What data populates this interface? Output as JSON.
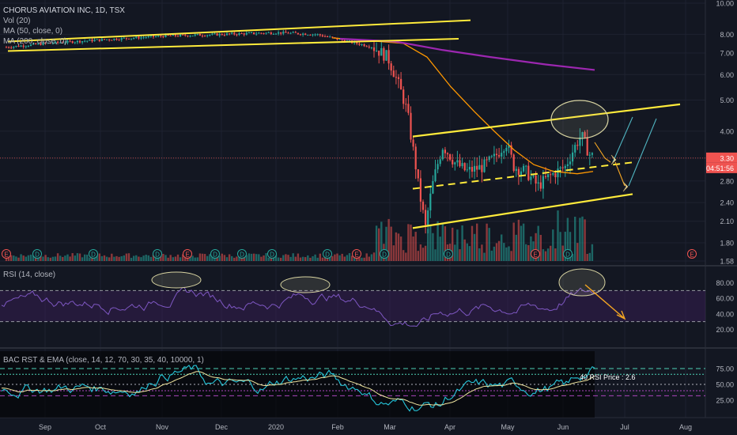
{
  "header": {
    "symbol_line": "CHORUS AVIATION INC, 1D, TSX",
    "vol_label": "Vol (20)",
    "ma1_label": "MA (50, close, 0)",
    "ma2_label": "MA (200, close, 0)",
    "rsi_label": "RSI (14, close)",
    "bac_label": "BAC RST & EMA (close, 14, 12, 70, 30, 35, 40, 10000, 1)"
  },
  "price_axis": {
    "ticks": [
      "10.00",
      "8.00",
      "7.00",
      "6.00",
      "5.00",
      "4.00",
      "3.30",
      "2.80",
      "2.40",
      "2.10",
      "1.80",
      "1.58"
    ],
    "last_price": "3.30",
    "countdown": "04:51:56"
  },
  "rsi_axis": {
    "ticks": [
      "80.00",
      "60.00",
      "40.00",
      "20.00"
    ]
  },
  "bac_axis": {
    "ticks": [
      "75.00",
      "50.00",
      "25.00"
    ]
  },
  "bac_annotation": "40 RSI Price : 2.6",
  "time_axis": {
    "labels": [
      "Sep",
      "Oct",
      "Nov",
      "Dec",
      "2020",
      "Feb",
      "Mar",
      "Apr",
      "May",
      "Jun",
      "Jul",
      "Aug"
    ]
  },
  "event_markers": [
    "E",
    "D",
    "E",
    "D",
    "D",
    "D",
    "E",
    "D",
    "D",
    "E",
    "D",
    "E",
    "D",
    "E",
    "D",
    "E",
    "D",
    "E"
  ],
  "colors": {
    "bg": "#131722",
    "up": "#26a69a",
    "down": "#ef5350",
    "trendline": "#ffeb3b",
    "ma_fast": "#ff9800",
    "ma_slow": "#9c27b0",
    "rsi": "#7e57c2",
    "teal": "#26c6da"
  },
  "chart_data": {
    "type": "candlestick",
    "title": "CHORUS AVIATION INC, 1D, TSX",
    "y_scale": "log",
    "ylim": [
      1.58,
      10.0
    ],
    "x_range": [
      "Aug",
      "Aug"
    ],
    "series": [
      {
        "name": "Vol (20)",
        "type": "bar"
      },
      {
        "name": "MA (50, close, 0)",
        "type": "line"
      },
      {
        "name": "MA (200, close, 0)",
        "type": "line"
      }
    ],
    "price_path": [
      [
        "Aug",
        7.5
      ],
      [
        "Sep",
        7.6
      ],
      [
        "Oct",
        7.7
      ],
      [
        "Nov",
        7.9
      ],
      [
        "Dec",
        8.1
      ],
      [
        "2020",
        8.2
      ],
      [
        "Feb",
        7.8
      ],
      [
        "Mar",
        6.5
      ],
      [
        "Mar",
        3.5
      ],
      [
        "Mar",
        2.0
      ],
      [
        "Apr",
        3.2
      ],
      [
        "Apr",
        3.0
      ],
      [
        "May",
        2.8
      ],
      [
        "May",
        2.7
      ],
      [
        "Jun",
        3.8
      ],
      [
        "Jun",
        3.3
      ]
    ],
    "last_price": 3.3,
    "rsi": {
      "name": "RSI (14, close)",
      "ylim": [
        0,
        100
      ],
      "bands": [
        70,
        30
      ]
    },
    "bac": {
      "ylim": [
        0,
        100
      ],
      "levels": [
        75,
        50,
        25
      ],
      "annotation": "40 RSI Price : 2.6"
    }
  }
}
